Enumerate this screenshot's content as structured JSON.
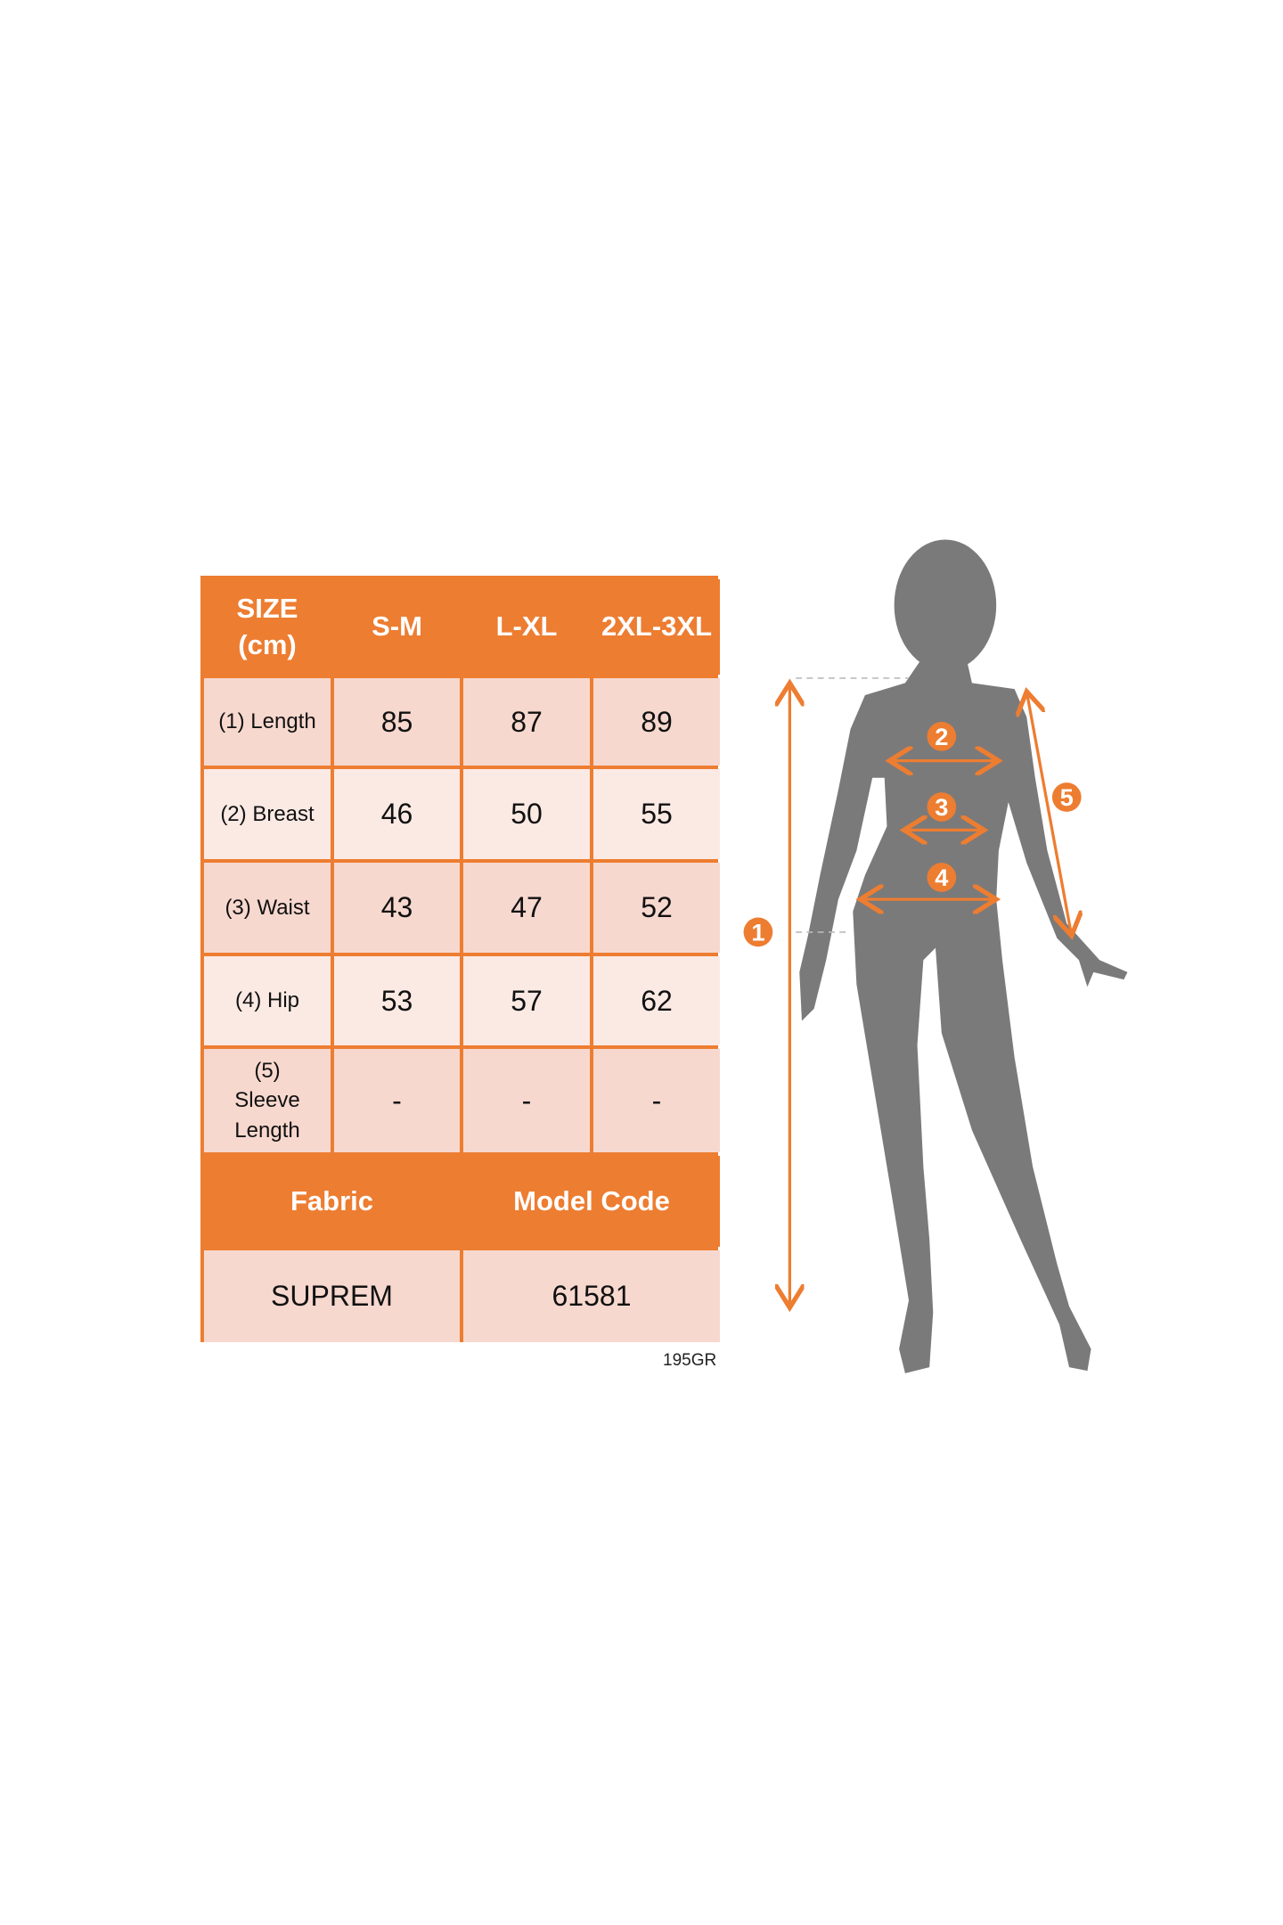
{
  "colors": {
    "accent": "#ED7D31",
    "row_dark": "#F7D8CE",
    "row_light": "#FBEAE4",
    "silhouette": "#7A7A7A"
  },
  "table": {
    "header": [
      "SIZE (cm)",
      "S-M",
      "L-XL",
      "2XL-3XL"
    ],
    "rows": [
      {
        "label": "(1) Length",
        "values": [
          "85",
          "87",
          "89"
        ]
      },
      {
        "label": "(2) Breast",
        "values": [
          "46",
          "50",
          "55"
        ]
      },
      {
        "label": "(3) Waist",
        "values": [
          "43",
          "47",
          "52"
        ]
      },
      {
        "label": "(4) Hip",
        "values": [
          "53",
          "57",
          "62"
        ]
      },
      {
        "label": "(5) Sleeve Length",
        "values": [
          "-",
          "-",
          "-"
        ]
      }
    ],
    "footer_headers": [
      "Fabric",
      "Model Code"
    ],
    "footer_values": [
      "SUPREM",
      "61581"
    ]
  },
  "code_label": "195GR",
  "figure": {
    "badges": [
      "1",
      "2",
      "3",
      "4",
      "5"
    ]
  }
}
